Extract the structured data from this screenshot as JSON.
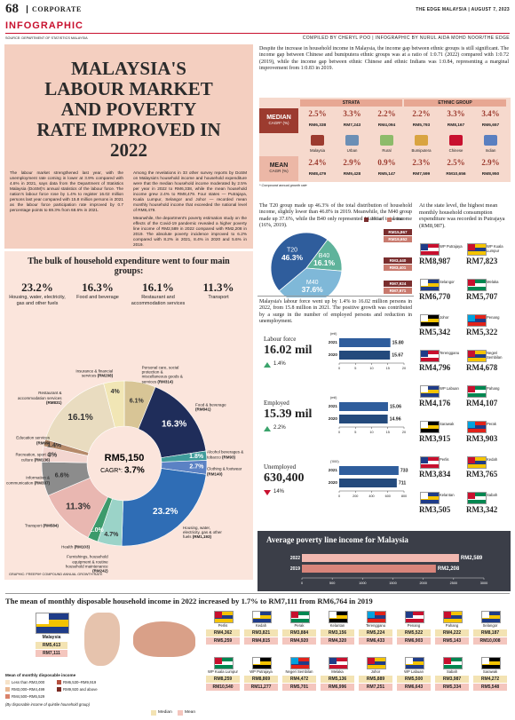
{
  "header": {
    "page": "68",
    "section": "CORPORATE",
    "kicker": "INFOGRAPHIC",
    "publication": "THE EDGE MALAYSIA | AUGUST 7, 2023",
    "source": "SOURCE: DEPARTMENT OF STATISTICS MALAYSIA",
    "credit": "COMPILED BY CHERYL POO | INFOGRAPHIC BY NURUL AIDA MOHD NOOR/THE EDGE"
  },
  "intro": {
    "title": "MALAYSIA'S LABOUR MARKET AND POVERTY RATE IMPROVED IN 2022",
    "paragraphs": [
      "The labour market strengthened last year, with the unemployment rate coming in lower at 3.9% compared with 4.6% in 2021, says data from the Department of Statistics Malaysia (DoSM)'s annual statistics of the labour force. The nation's labour force rose by 1.4% to register 16.02 million persons last year compared with 15.8 million persons in 2021 as the labour force participation rate improved by 0.7 percentage points to 69.3% from 68.6% in 2021.",
      "Among the revelations in 33 other survey reports by DoSM on Malaysia's household income and household expenditure were that the median household income moderated by 2.5% per year in 2022 to RM6,338, while the mean household income grew 2.4% to RM8,479. Four states — Putrajaya, Kuala Lumpur, Selangor and Johor — recorded mean monthly household income that exceeded the national level of RM8,479.",
      "Meanwhile, the department's poverty estimation study on the effects of the Covid-19 pandemic revealed a higher poverty line income of RM2,589 in 2022 compared with RM2,208 in 2019. The absolute poverty incidence improved to 6.2% compared with 8.2% in 2021, 8.4% in 2020 and 5.6% in 2019."
    ]
  },
  "ethnic": {
    "text": "Despite the increase in household income in Malaysia, the income gap between ethnic groups is still significant. The income gap between Chinese and bumiputera ethnic groups was at a ratio of 1:0.71 (2022) compared with 1:0.72 (2019), while the income gap between ethnic Chinese and ethnic Indians was 1:0.84, representing a marginal improvement from 1:0.83 in 2019.",
    "strata_label": "STRATA",
    "ethnic_label": "ETHNIC GROUP",
    "median_label": "MEDIAN",
    "median_sub": "CAGR* (%)",
    "mean_label": "MEAN",
    "mean_sub": "CAGR (%)",
    "footnote": "* Compound annual growth rate",
    "columns": [
      {
        "name": "Malaysia",
        "median_cagr": "2.5%",
        "median_value": "RM6,338",
        "mean_cagr": "2.4%",
        "mean_value": "RM8,479"
      },
      {
        "name": "Urban",
        "median_cagr": "3.3%",
        "median_value": "RM7,243",
        "mean_cagr": "2.9%",
        "mean_value": "RM9,428"
      },
      {
        "name": "Rural",
        "median_cagr": "2.2%",
        "median_value": "RM4,094",
        "mean_cagr": "0.9%",
        "mean_value": "RM5,147"
      },
      {
        "name": "Bumiputera",
        "median_cagr": "2.2%",
        "median_value": "RM5,793",
        "mean_cagr": "2.3%",
        "mean_value": "RM7,599"
      },
      {
        "name": "Chinese",
        "median_cagr": "3.3%",
        "median_value": "RM8,167",
        "mean_cagr": "2.5%",
        "mean_value": "RM10,656"
      },
      {
        "name": "Indian",
        "median_cagr": "3.4%",
        "median_value": "RM6,657",
        "mean_cagr": "2.9%",
        "mean_value": "RM8,950"
      }
    ]
  },
  "income_share": {
    "text": "The T20 group made up 46.3% of the total distribution of household income, slightly lower than 46.8% in 2019. Meanwhile, the M40 group made up 37.6%, while the B40 only represented 16.1% of total income (16%, 2019)."
  },
  "labour": {
    "text": "Malaysia's labour force went up by 1.4% to 16.02 million persons in 2022, from 15.8 million in 2021. The positive growth was contributed by a surge in the number of employed persons and reduction in unemployment."
  },
  "expenditure_summary": {
    "title": "The bulk of household expenditure went to four main groups:",
    "items": [
      {
        "value": "23.2%",
        "label": "Housing, water, electricity, gas and other fuels"
      },
      {
        "value": "16.3%",
        "label": "Food and beverage"
      },
      {
        "value": "16.1%",
        "label": "Restaurant and accommodation services"
      },
      {
        "value": "11.3%",
        "label": "Transport"
      }
    ],
    "credit": "GRAPHIC: FREEPIK",
    "footnote": "* COMPOUND ANNUAL GROWTH RATE"
  },
  "state_expenditure": {
    "text": "At the state level, the highest mean monthly household consumption expenditure was recorded in Putrajaya (RM8,987).",
    "states": [
      {
        "name": "WP Putrajaya",
        "value": "RM8,987"
      },
      {
        "name": "WP Kuala Lumpur",
        "value": "RM7,823"
      },
      {
        "name": "Selangor",
        "value": "RM6,770"
      },
      {
        "name": "Melaka",
        "value": "RM5,707"
      },
      {
        "name": "Johor",
        "value": "RM5,342"
      },
      {
        "name": "Penang",
        "value": "RM5,322"
      },
      {
        "name": "Terengganu",
        "value": "RM4,796"
      },
      {
        "name": "Negeri Sembilan",
        "value": "RM4,678"
      },
      {
        "name": "WP Labuan",
        "value": "RM4,176"
      },
      {
        "name": "Pahang",
        "value": "RM4,107"
      },
      {
        "name": "Sarawak",
        "value": "RM3,915"
      },
      {
        "name": "Perak",
        "value": "RM3,903"
      },
      {
        "name": "Perlis",
        "value": "RM3,834"
      },
      {
        "name": "Kedah",
        "value": "RM3,765"
      },
      {
        "name": "Kelantan",
        "value": "RM3,505"
      },
      {
        "name": "Sabah",
        "value": "RM3,342"
      }
    ]
  },
  "disposable": {
    "title": "The mean of monthly disposable household income in 2022 increased by 1.7% to RM7,111 from RM6,764 in 2019",
    "malaysia": {
      "name": "Malaysia",
      "median": "RM5,413",
      "mean": "RM7,111"
    },
    "legend_median": "Median",
    "legend_mean": "Mean",
    "states": [
      {
        "name": "Perlis",
        "median": "RM4,362",
        "mean": "RM5,259"
      },
      {
        "name": "Kedah",
        "median": "RM3,821",
        "mean": "RM4,815"
      },
      {
        "name": "Perak",
        "median": "RM3,884",
        "mean": "RM4,920"
      },
      {
        "name": "Kelantan",
        "median": "RM3,156",
        "mean": "RM4,320"
      },
      {
        "name": "Terengganu",
        "median": "RM5,224",
        "mean": "RM6,433"
      },
      {
        "name": "Penang",
        "median": "RM5,522",
        "mean": "RM6,903"
      },
      {
        "name": "Pahang",
        "median": "RM4,222",
        "mean": "RM5,143"
      },
      {
        "name": "Selangor",
        "median": "RM8,187",
        "mean": "RM10,008"
      },
      {
        "name": "WP Kuala Lumpur",
        "median": "RM8,259",
        "mean": "RM10,540"
      },
      {
        "name": "WP Putrajaya",
        "median": "RM8,869",
        "mean": "RM11,277"
      },
      {
        "name": "Negeri Sembilan",
        "median": "RM4,472",
        "mean": "RM5,701"
      },
      {
        "name": "Melaka",
        "median": "RM5,136",
        "mean": "RM6,996"
      },
      {
        "name": "Johor",
        "median": "RM5,889",
        "mean": "RM7,251"
      },
      {
        "name": "WP Labuan",
        "median": "RM5,500",
        "mean": "RM6,643"
      },
      {
        "name": "Sabah",
        "median": "RM3,987",
        "mean": "RM5,334"
      },
      {
        "name": "Sarawak",
        "median": "RM4,272",
        "mean": "RM5,548"
      }
    ],
    "map_legend": {
      "title": "Mean of monthly disposable income",
      "ranges": [
        "Less than RM3,000",
        "RM3,000–RM4,499",
        "RM4,500–RM5,529",
        "RM6,530–RM9,919",
        "RM9,920 and above"
      ],
      "colors": [
        "#f6e3c8",
        "#eab892",
        "#d9826a",
        "#b5503f",
        "#7a2a22"
      ],
      "note": "(By disposable income of quintile household group)"
    }
  },
  "chart_data": [
    {
      "type": "pie",
      "center_value": "RM5,150",
      "center_label": "CAGR*:",
      "center_cagr": "3.7%",
      "categories": [
        "Personal care, social protection & miscellaneous goods & services",
        "Food & beverage",
        "Alcohol beverages & tobacco",
        "Clothing & footwear",
        "Housing, water, electricity, gas & other fuels",
        "Furnishings, household equipment & routine household maintenance",
        "Health",
        "Transport",
        "Information & communication",
        "Recreation, sport & culture",
        "Education services",
        "Restaurant & accommodation services",
        "Insurance & financial services"
      ],
      "values": [
        6.1,
        16.3,
        1.8,
        2.7,
        23.2,
        4.7,
        2.0,
        11.3,
        6.6,
        3,
        1.4,
        16.1,
        4
      ],
      "value_labels": [
        "6.1%",
        "16.3%",
        "1.8%",
        "2.7%",
        "23.2%",
        "4.7%",
        "2.0%",
        "11.3%",
        "6.6%",
        "3%",
        "1.4%",
        "16.1%",
        "4%"
      ],
      "amounts": [
        "(RM314)",
        "(RM841)",
        "(RM93)",
        "(RM140)",
        "(RM1,193)",
        "(RM242)",
        "(RM103)",
        "(RM584)",
        "(RM337)",
        "(RM136)",
        "(RM69)",
        "(RM831)",
        "(RM208)"
      ],
      "colors": [
        "#d8c596",
        "#1f2d5a",
        "#3f9c9b",
        "#5b82c4",
        "#2f6db5",
        "#9bd3c8",
        "#3c9a6b",
        "#e9b7b1",
        "#8c8c8c",
        "#f3d6d0",
        "#b58a6a",
        "#e9dcc0",
        "#f1e6b5"
      ]
    },
    {
      "type": "pie",
      "categories": [
        "T20",
        "B40",
        "M40"
      ],
      "values": [
        46.3,
        16.1,
        37.6
      ],
      "value_labels": [
        "46.3%",
        "16.1%",
        "37.6%"
      ],
      "colors": [
        "#2f5d9c",
        "#5fb39b",
        "#7fb8d8"
      ],
      "median_labels": [
        "RM15,867",
        "RM3,440",
        "RM7,924"
      ],
      "mean_labels": [
        "RM19,652",
        "RM3,401",
        "RM7,971"
      ],
      "legend": [
        "Median",
        "Mean"
      ],
      "legend_colors": [
        "#7a2e2e",
        "#c97a6e"
      ]
    },
    {
      "type": "bar",
      "title": "Labour force",
      "headline": "16.02 mil",
      "change": "1.4%",
      "trend": "up",
      "unit": "(mil)",
      "categories": [
        "2021",
        "2020"
      ],
      "values": [
        15.8,
        15.67
      ],
      "value_labels": [
        "15.80",
        "15.67"
      ],
      "colors": [
        "#2f5d9c",
        "#244a7c"
      ],
      "xlim": [
        0,
        20
      ],
      "xticks": [
        0,
        5,
        10,
        15,
        20
      ]
    },
    {
      "type": "bar",
      "title": "Employed",
      "headline": "15.39 mil",
      "change": "2.2%",
      "trend": "up",
      "unit": "(mil)",
      "categories": [
        "2021",
        "2020"
      ],
      "values": [
        15.06,
        14.96
      ],
      "colors": [
        "#2f5d9c",
        "#244a7c"
      ],
      "xlim": [
        0,
        20
      ],
      "xticks": [
        0,
        5,
        10,
        15,
        20
      ]
    },
    {
      "type": "bar",
      "title": "Unemployed",
      "headline": "630,400",
      "change": "14%",
      "trend": "down",
      "unit": "('000)",
      "categories": [
        "2021",
        "2020"
      ],
      "values": [
        733,
        711
      ],
      "colors": [
        "#2f5d9c",
        "#244a7c"
      ],
      "xlim": [
        0,
        800
      ],
      "xticks": [
        0,
        200,
        400,
        600,
        800
      ]
    },
    {
      "type": "bar",
      "title": "Average poverty line income for Malaysia",
      "categories": [
        "2022",
        "2019"
      ],
      "values": [
        2589,
        2208
      ],
      "value_labels": [
        "RM2,589",
        "RM2,208"
      ],
      "colors": [
        "#f2b8b0",
        "#d9857b"
      ],
      "xlim": [
        0,
        3000
      ],
      "xticks": [
        0,
        500,
        1000,
        1500,
        2000,
        2500,
        3000
      ]
    }
  ]
}
